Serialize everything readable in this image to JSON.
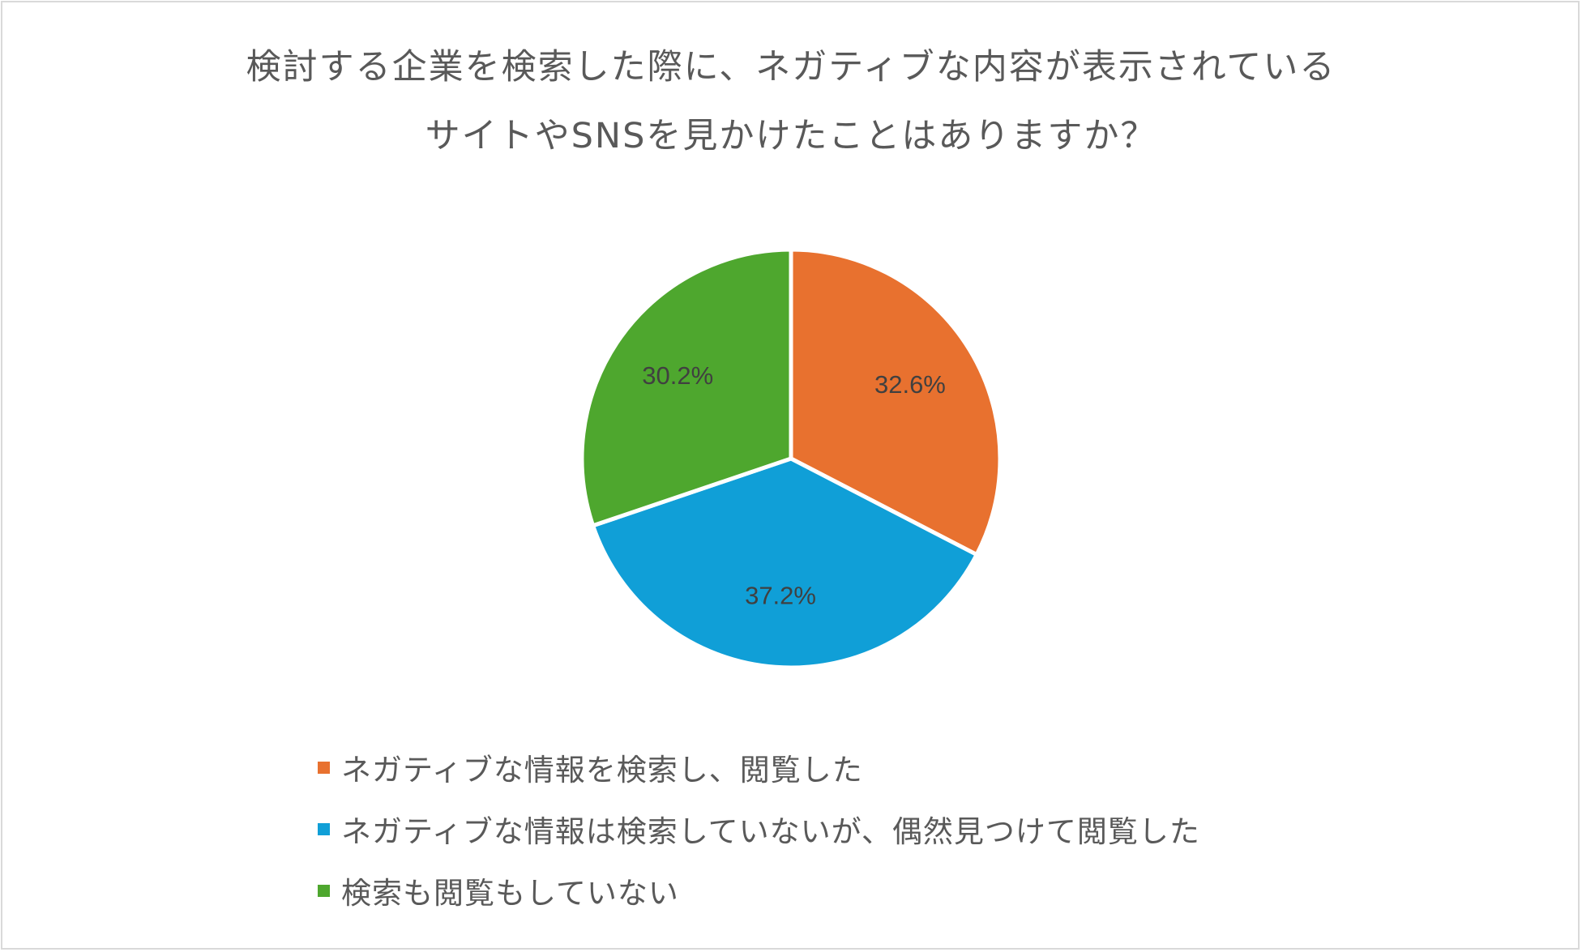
{
  "chart_data": {
    "type": "pie",
    "title_lines": [
      "検討する企業を検索した際に、ネガティブな内容が表示されている",
      "サイトやSNSを見かけたことはありますか？"
    ],
    "slices": [
      {
        "label": "ネガティブな情報を検索し、閲覧した",
        "value": 32.6,
        "value_label": "32.6%",
        "color": "#e8712f"
      },
      {
        "label": "ネガティブな情報は検索していないが、偶然見つけて閲覧した",
        "value": 37.2,
        "value_label": "37.2%",
        "color": "#109fd7"
      },
      {
        "label": "検索も閲覧もしていない",
        "value": 30.2,
        "value_label": "30.2%",
        "color": "#4ea72e"
      }
    ],
    "start_angle": "12 o'clock",
    "direction": "clockwise",
    "legend_position": "bottom"
  }
}
